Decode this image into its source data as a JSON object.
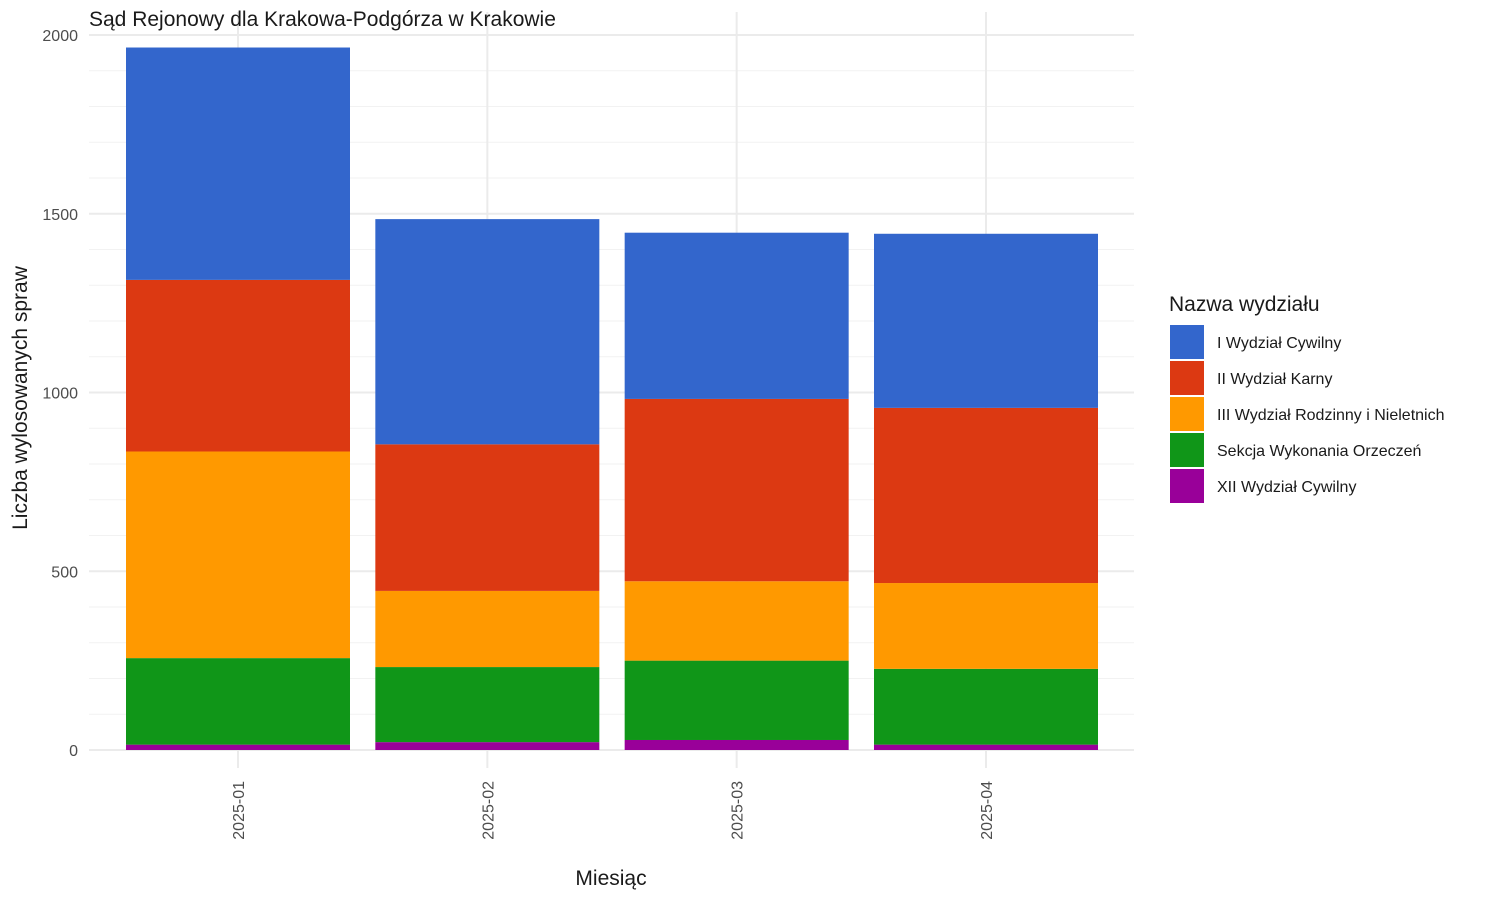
{
  "chart_data": {
    "type": "bar",
    "stacked": true,
    "title": "Sąd Rejonowy dla Krakowa-Podgórza w Krakowie",
    "xlabel": "Miesiąc",
    "ylabel": "Liczba wylosowanych spraw",
    "ylim": [
      0,
      2000
    ],
    "yticks": [
      0,
      500,
      1000,
      1500,
      2000
    ],
    "grid": true,
    "categories": [
      "2025-01",
      "2025-02",
      "2025-03",
      "2025-04"
    ],
    "legend": {
      "title": "Nazwa wydziału",
      "position": "right"
    },
    "series": [
      {
        "name": "XII Wydział Cywilny",
        "color": "#990099",
        "values": [
          15,
          22,
          28,
          15
        ]
      },
      {
        "name": "Sekcja Wykonania Orzeczeń",
        "color": "#109618",
        "values": [
          242,
          210,
          222,
          212
        ]
      },
      {
        "name": "III Wydział Rodzinny i Nieletnich",
        "color": "#FF9900",
        "values": [
          578,
          213,
          222,
          240
        ]
      },
      {
        "name": "II Wydział Karny",
        "color": "#DC3912",
        "values": [
          480,
          410,
          510,
          490
        ]
      },
      {
        "name": "I Wydział Cywilny",
        "color": "#3366CC",
        "values": [
          650,
          630,
          465,
          487
        ]
      }
    ],
    "legend_order": [
      "I Wydział Cywilny",
      "II Wydział Karny",
      "III Wydział Rodzinny i Nieletnich",
      "Sekcja Wykonania Orzeczeń",
      "XII Wydział Cywilny"
    ]
  }
}
